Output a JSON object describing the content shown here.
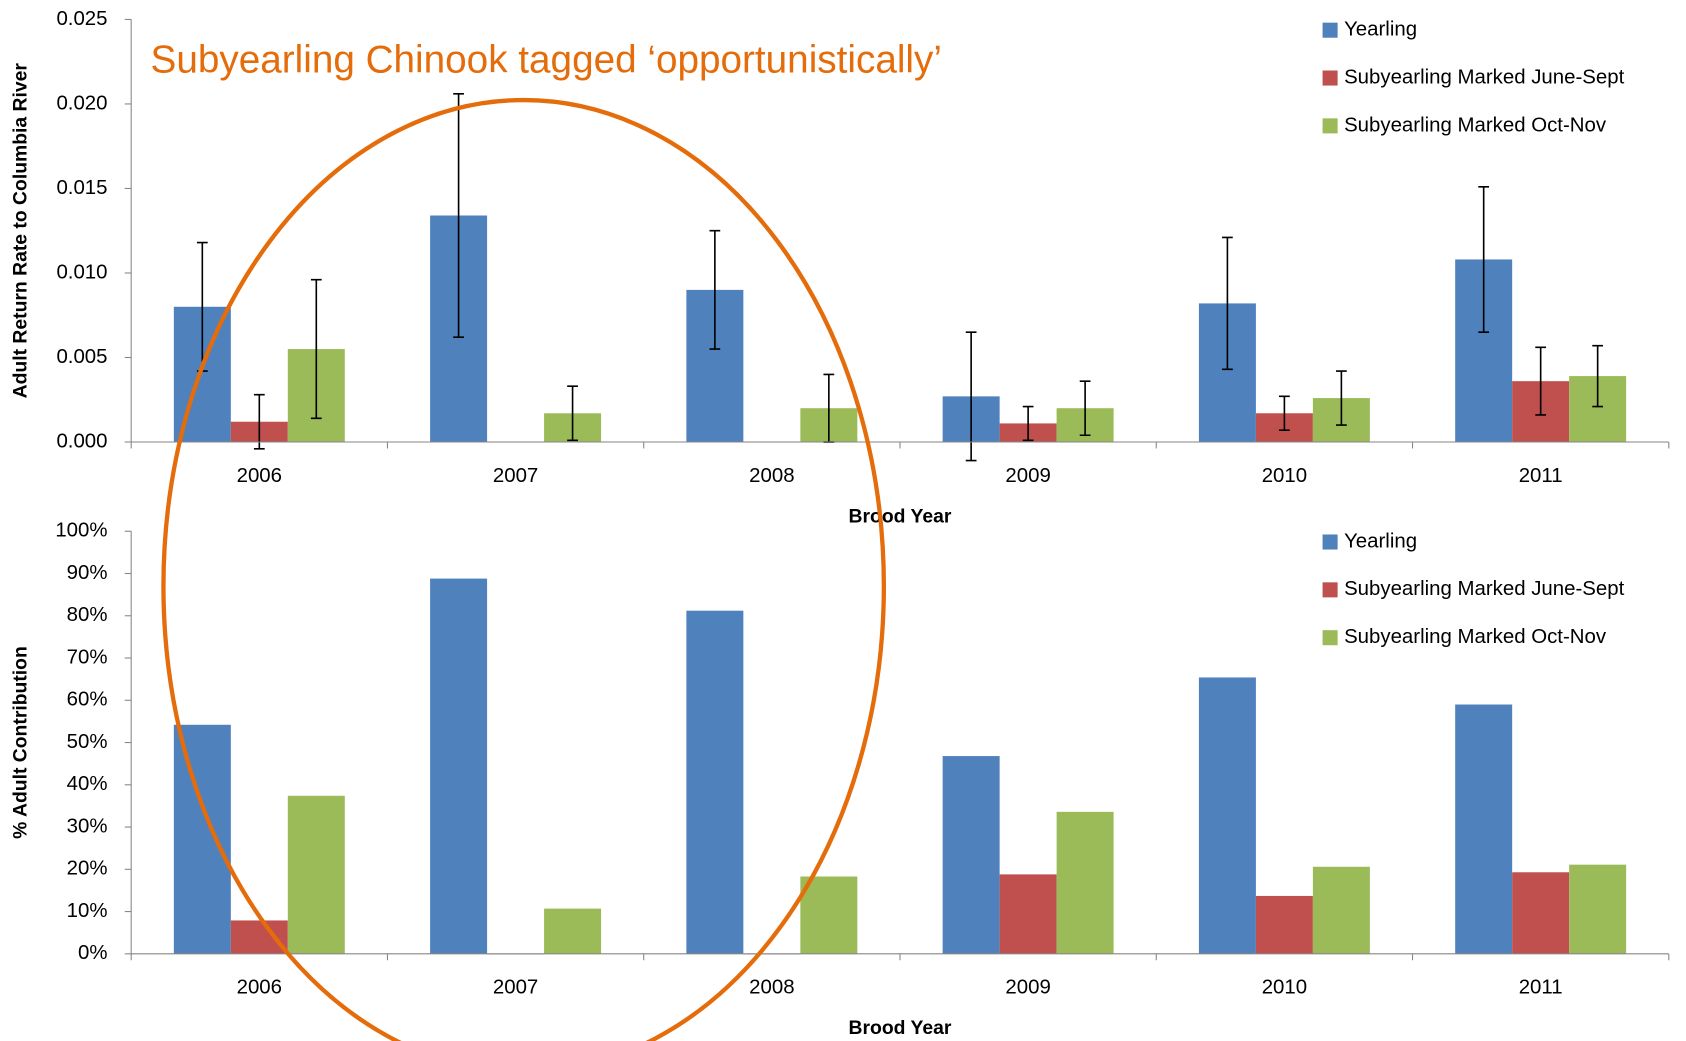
{
  "chart_data": [
    {
      "type": "bar",
      "annotation": "Subyearling Chinook tagged ‘opportunistically’",
      "y_label": "Adult Return Rate to Columbia River",
      "x_label": "Brood Year",
      "categories": [
        "2006",
        "2007",
        "2008",
        "2009",
        "2010",
        "2011"
      ],
      "ylim": [
        0,
        0.025
      ],
      "yticks": [
        {
          "value": 0,
          "label": "0.000"
        },
        0.005,
        {
          "value": 0.01,
          "label": "0.010"
        },
        0.015,
        {
          "value": 0.02,
          "label": "0.020"
        },
        0.025
      ],
      "series": [
        {
          "name": "Yearling",
          "color": "#4f81bd",
          "values": [
            0.008,
            0.0134,
            0.009,
            0.0027,
            0.0082,
            0.0108
          ],
          "errors": [
            0.0038,
            0.0072,
            0.0035,
            0.0038,
            0.0039,
            0.0043
          ]
        },
        {
          "name": "Subyearling Marked June-Sept",
          "color": "#c0504d",
          "values": [
            0.0012,
            0,
            0,
            0.0011,
            0.0017,
            0.0036
          ],
          "errors": [
            0.0016,
            null,
            null,
            0.001,
            0.001,
            0.002
          ]
        },
        {
          "name": "Subyearling Marked Oct-Nov",
          "color": "#9bbb59",
          "values": [
            0.0055,
            0.0017,
            0.002,
            0.002,
            0.0026,
            0.0039
          ],
          "errors": [
            0.0041,
            0.0016,
            0.002,
            0.0016,
            0.0016,
            0.0018
          ]
        }
      ]
    },
    {
      "type": "bar",
      "y_label": "% Adult Contribution",
      "x_label": "Brood Year",
      "categories": [
        "2006",
        "2007",
        "2008",
        "2009",
        "2010",
        "2011"
      ],
      "ylim": [
        0,
        100
      ],
      "yticks": [
        {
          "value": 0,
          "label": "0%"
        },
        {
          "value": 10,
          "label": "10%"
        },
        {
          "value": 20,
          "label": "20%"
        },
        {
          "value": 30,
          "label": "30%"
        },
        {
          "value": 40,
          "label": "40%"
        },
        {
          "value": 50,
          "label": "50%"
        },
        {
          "value": 60,
          "label": "60%"
        },
        {
          "value": 70,
          "label": "70%"
        },
        {
          "value": 80,
          "label": "80%"
        },
        {
          "value": 90,
          "label": "90%"
        },
        {
          "value": 100,
          "label": "100%"
        }
      ],
      "series": [
        {
          "name": "Yearling",
          "color": "#4f81bd",
          "values": [
            54.2,
            88.8,
            81.2,
            46.8,
            65.4,
            59.0
          ]
        },
        {
          "name": "Subyearling Marked June-Sept",
          "color": "#c0504d",
          "values": [
            7.9,
            0,
            0,
            18.8,
            13.7,
            19.3
          ]
        },
        {
          "name": "Subyearling Marked Oct-Nov",
          "color": "#9bbb59",
          "values": [
            37.4,
            10.7,
            18.3,
            33.6,
            20.6,
            21.1
          ]
        }
      ]
    }
  ]
}
